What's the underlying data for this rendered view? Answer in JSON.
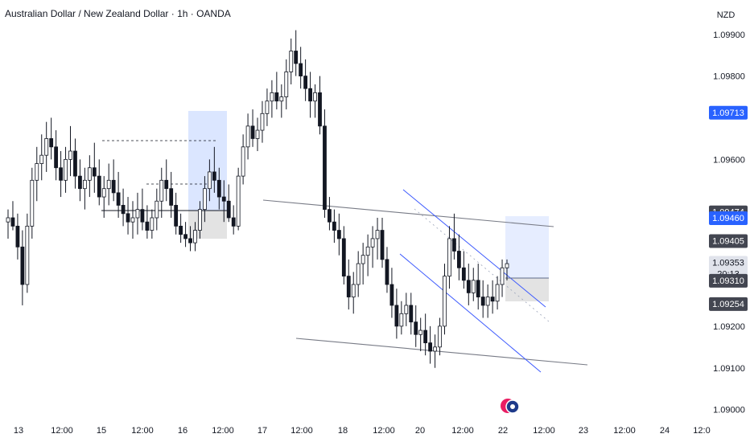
{
  "header": {
    "title": "Australian Dollar / New Zealand Dollar · 1h · OANDA",
    "currency": "NZD",
    "countdown": "20:13"
  },
  "colors": {
    "up": "#131722",
    "down": "#131722",
    "blue_line": "#3d5afe",
    "badge_blue": "#2962ff",
    "badge_dark": "#434651",
    "badge_gray": "#e0e3eb",
    "zone_blue": "#dbe6ff",
    "zone_gray": "#e3e3e3",
    "trend_gray": "#787b86"
  },
  "chart_data": {
    "type": "candlestick",
    "x_ticks": [
      "13",
      "12:00",
      "15",
      "12:00",
      "16",
      "12:00",
      "17",
      "12:00",
      "18",
      "12:00",
      "20",
      "12:00",
      "22",
      "12:00",
      "23",
      "12:00",
      "24",
      "12:0"
    ],
    "y_ticks": [
      "1.09900",
      "1.09800",
      "1.09600",
      "1.09200",
      "1.09100",
      "1.09000"
    ],
    "ylim": [
      1.0898,
      1.0994
    ],
    "price_labels": [
      {
        "price": 1.09713,
        "text": "1.09713",
        "style": "blue"
      },
      {
        "price": 1.09474,
        "text": "1.09474",
        "style": "dark"
      },
      {
        "price": 1.0946,
        "text": "1.09460",
        "style": "blue"
      },
      {
        "price": 1.09405,
        "text": "1.09405",
        "style": "dark"
      },
      {
        "price": 1.09353,
        "text": "1.09353",
        "style": "gray"
      },
      {
        "price": 1.0931,
        "text": "1.09310",
        "style": "dark"
      },
      {
        "price": 1.09254,
        "text": "1.09254",
        "style": "dark"
      }
    ],
    "candles": [
      [
        1.0945,
        1.0948,
        1.0941,
        1.0946
      ],
      [
        1.0946,
        1.095,
        1.0943,
        1.0944
      ],
      [
        1.0944,
        1.0947,
        1.0936,
        1.0939
      ],
      [
        1.0939,
        1.0943,
        1.0925,
        1.093
      ],
      [
        1.093,
        1.0947,
        1.0928,
        1.0944
      ],
      [
        1.0944,
        1.0958,
        1.0941,
        1.0955
      ],
      [
        1.0955,
        1.0963,
        1.095,
        1.0959
      ],
      [
        1.0959,
        1.0966,
        1.0955,
        1.0961
      ],
      [
        1.0961,
        1.0969,
        1.0957,
        1.0965
      ],
      [
        1.0965,
        1.097,
        1.096,
        1.0963
      ],
      [
        1.0963,
        1.0967,
        1.0955,
        1.0958
      ],
      [
        1.0958,
        1.0962,
        1.0951,
        1.0955
      ],
      [
        1.0955,
        1.0963,
        1.0952,
        1.096
      ],
      [
        1.096,
        1.0968,
        1.0956,
        1.0962
      ],
      [
        1.0962,
        1.0965,
        1.0953,
        1.0956
      ],
      [
        1.0956,
        1.096,
        1.095,
        1.0953
      ],
      [
        1.0953,
        1.0958,
        1.0948,
        1.0955
      ],
      [
        1.0955,
        1.0961,
        1.0951,
        1.0958
      ],
      [
        1.0958,
        1.0964,
        1.0952,
        1.0956
      ],
      [
        1.0956,
        1.096,
        1.0949,
        1.0951
      ],
      [
        1.0951,
        1.0956,
        1.0946,
        1.0953
      ],
      [
        1.0953,
        1.0959,
        1.0949,
        1.0955
      ],
      [
        1.0955,
        1.096,
        1.095,
        1.0952
      ],
      [
        1.0952,
        1.0957,
        1.0946,
        1.0949
      ],
      [
        1.0949,
        1.0953,
        1.0944,
        1.0947
      ],
      [
        1.0947,
        1.0951,
        1.0942,
        1.0945
      ],
      [
        1.0945,
        1.095,
        1.0941,
        1.0946
      ],
      [
        1.0946,
        1.0952,
        1.0942,
        1.0948
      ],
      [
        1.0948,
        1.0953,
        1.0943,
        1.0945
      ],
      [
        1.0945,
        1.0949,
        1.0941,
        1.0943
      ],
      [
        1.0943,
        1.0948,
        1.0941,
        1.0946
      ],
      [
        1.0946,
        1.0953,
        1.0943,
        1.095
      ],
      [
        1.095,
        1.0958,
        1.0946,
        1.0955
      ],
      [
        1.0955,
        1.096,
        1.095,
        1.0953
      ],
      [
        1.0953,
        1.0957,
        1.0946,
        1.0949
      ],
      [
        1.0949,
        1.0952,
        1.0942,
        1.0944
      ],
      [
        1.0944,
        1.0947,
        1.094,
        1.0942
      ],
      [
        1.0942,
        1.0945,
        1.0939,
        1.0941
      ],
      [
        1.0941,
        1.0944,
        1.0938,
        1.094
      ],
      [
        1.094,
        1.0945,
        1.0938,
        1.0943
      ],
      [
        1.0943,
        1.095,
        1.0941,
        1.0948
      ],
      [
        1.0948,
        1.0956,
        1.0945,
        1.0953
      ],
      [
        1.0953,
        1.096,
        1.095,
        1.0957
      ],
      [
        1.0957,
        1.0963,
        1.0952,
        1.0955
      ],
      [
        1.0955,
        1.0958,
        1.0948,
        1.0951
      ],
      [
        1.0951,
        1.0955,
        1.0945,
        1.095
      ],
      [
        1.095,
        1.0954,
        1.0945,
        1.0946
      ],
      [
        1.0946,
        1.0949,
        1.0942,
        1.0944
      ],
      [
        1.0944,
        1.0958,
        1.0943,
        1.0956
      ],
      [
        1.0956,
        1.0966,
        1.0954,
        1.0963
      ],
      [
        1.0963,
        1.0971,
        1.096,
        1.0968
      ],
      [
        1.0968,
        1.0972,
        1.0963,
        1.0965
      ],
      [
        1.0965,
        1.097,
        1.0962,
        1.0967
      ],
      [
        1.0967,
        1.0974,
        1.0964,
        1.0971
      ],
      [
        1.0971,
        1.0977,
        1.0968,
        1.0974
      ],
      [
        1.0974,
        1.0979,
        1.097,
        1.0976
      ],
      [
        1.0976,
        1.0981,
        1.0972,
        1.0974
      ],
      [
        1.0974,
        1.0978,
        1.097,
        1.0975
      ],
      [
        1.0975,
        1.0984,
        1.0972,
        1.0981
      ],
      [
        1.0981,
        1.0989,
        1.0978,
        1.0986
      ],
      [
        1.0986,
        1.0991,
        1.098,
        1.0983
      ],
      [
        1.0983,
        1.0987,
        1.0977,
        1.098
      ],
      [
        1.098,
        1.0984,
        1.0974,
        1.0977
      ],
      [
        1.0977,
        1.0981,
        1.097,
        1.0974
      ],
      [
        1.0974,
        1.0978,
        1.097,
        1.0976
      ],
      [
        1.0976,
        1.098,
        1.0966,
        1.0968
      ],
      [
        1.0968,
        1.0972,
        1.0946,
        1.0948
      ],
      [
        1.0948,
        1.0951,
        1.0943,
        1.0945
      ],
      [
        1.0945,
        1.0948,
        1.094,
        1.0943
      ],
      [
        1.0943,
        1.0947,
        1.0937,
        1.0941
      ],
      [
        1.0941,
        1.0944,
        1.093,
        1.0932
      ],
      [
        1.0932,
        1.0936,
        1.0924,
        1.0927
      ],
      [
        1.0927,
        1.0933,
        1.0923,
        1.093
      ],
      [
        1.093,
        1.0938,
        1.0927,
        1.0935
      ],
      [
        1.0935,
        1.094,
        1.093,
        1.0937
      ],
      [
        1.0937,
        1.0942,
        1.0932,
        1.0939
      ],
      [
        1.0939,
        1.0944,
        1.0934,
        1.0941
      ],
      [
        1.0941,
        1.0946,
        1.0936,
        1.0943
      ],
      [
        1.0943,
        1.0946,
        1.0934,
        1.0936
      ],
      [
        1.0936,
        1.0939,
        1.0928,
        1.093
      ],
      [
        1.093,
        1.0934,
        1.0922,
        1.0925
      ],
      [
        1.0925,
        1.0929,
        1.0917,
        1.092
      ],
      [
        1.092,
        1.0926,
        1.0918,
        1.0923
      ],
      [
        1.0923,
        1.0928,
        1.092,
        1.0925
      ],
      [
        1.0925,
        1.0928,
        1.0918,
        1.0921
      ],
      [
        1.0921,
        1.0925,
        1.0915,
        1.0918
      ],
      [
        1.0918,
        1.0922,
        1.0914,
        1.0919
      ],
      [
        1.0919,
        1.0923,
        1.0913,
        1.0916
      ],
      [
        1.0916,
        1.092,
        1.0911,
        1.0914
      ],
      [
        1.0914,
        1.0918,
        1.091,
        1.0915
      ],
      [
        1.0915,
        1.0922,
        1.0913,
        1.092
      ],
      [
        1.092,
        1.0935,
        1.0918,
        1.0932
      ],
      [
        1.0932,
        1.0944,
        1.0929,
        1.0941
      ],
      [
        1.0941,
        1.0947,
        1.0936,
        1.0938
      ],
      [
        1.0938,
        1.0942,
        1.0931,
        1.0934
      ],
      [
        1.0934,
        1.0938,
        1.0929,
        1.0931
      ],
      [
        1.0931,
        1.0935,
        1.0925,
        1.0928
      ],
      [
        1.0928,
        1.0934,
        1.0926,
        1.0931
      ],
      [
        1.0931,
        1.0935,
        1.0924,
        1.0927
      ],
      [
        1.0927,
        1.0931,
        1.0922,
        1.0925
      ],
      [
        1.0925,
        1.093,
        1.0922,
        1.0927
      ],
      [
        1.0927,
        1.0931,
        1.0923,
        1.0926
      ],
      [
        1.0926,
        1.0932,
        1.0924,
        1.093
      ],
      [
        1.093,
        1.0936,
        1.0927,
        1.0934
      ],
      [
        1.0934,
        1.0936,
        1.0931,
        1.0935
      ]
    ]
  }
}
